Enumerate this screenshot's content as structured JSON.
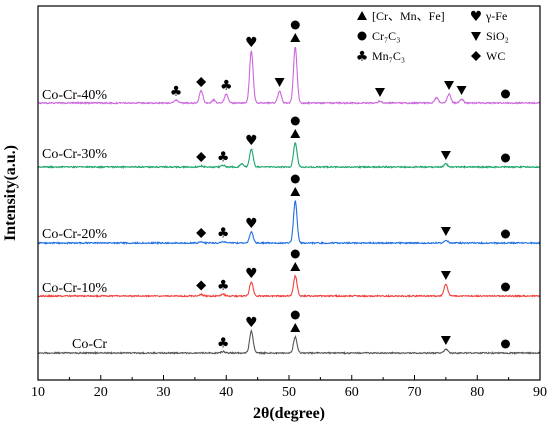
{
  "chart_data": {
    "type": "line",
    "xlabel": "2θ(degree)",
    "ylabel": "Intensity(a.u.)",
    "xlim": [
      10,
      90
    ],
    "x_ticks": [
      "10",
      "20",
      "30",
      "40",
      "50",
      "60",
      "70",
      "80",
      "90"
    ],
    "grid": false,
    "y_tick_labels": false,
    "series": [
      {
        "name": "Co-Cr",
        "color": "#555555",
        "peaks": [
          [
            39.5,
            1.5
          ],
          [
            44.0,
            22
          ],
          [
            51.0,
            16
          ],
          [
            75.0,
            4
          ]
        ],
        "markers": [
          {
            "symbol": "club",
            "x": 39.5
          },
          {
            "symbol": "heart",
            "x": 44.0
          },
          {
            "symbol": "triangle",
            "x": 51.0
          },
          {
            "symbol": "circle",
            "x": 51.0
          },
          {
            "symbol": "down-triangle",
            "x": 75.0
          },
          {
            "symbol": "circle",
            "x": 84.5
          }
        ]
      },
      {
        "name": "Co-Cr-10%",
        "color": "#f0413d",
        "peaks": [
          [
            36.0,
            1.5
          ],
          [
            39.5,
            2
          ],
          [
            44.0,
            14
          ],
          [
            51.0,
            20
          ],
          [
            75.0,
            12
          ]
        ],
        "markers": [
          {
            "symbol": "diamond",
            "x": 36.0
          },
          {
            "symbol": "club",
            "x": 39.5
          },
          {
            "symbol": "heart",
            "x": 44.0
          },
          {
            "symbol": "triangle",
            "x": 51.0
          },
          {
            "symbol": "circle",
            "x": 51.0
          },
          {
            "symbol": "down-triangle",
            "x": 75.0
          },
          {
            "symbol": "circle",
            "x": 84.5
          }
        ]
      },
      {
        "name": "Co-Cr-20%",
        "color": "#1f6fe0",
        "peaks": [
          [
            36.0,
            1
          ],
          [
            39.5,
            1.5
          ],
          [
            44.0,
            11
          ],
          [
            51.0,
            42
          ],
          [
            75.0,
            3
          ]
        ],
        "markers": [
          {
            "symbol": "diamond",
            "x": 36.0
          },
          {
            "symbol": "club",
            "x": 39.5
          },
          {
            "symbol": "heart",
            "x": 44.0
          },
          {
            "symbol": "triangle",
            "x": 51.0
          },
          {
            "symbol": "circle",
            "x": 51.0
          },
          {
            "symbol": "down-triangle",
            "x": 75.0
          },
          {
            "symbol": "circle",
            "x": 84.5
          }
        ]
      },
      {
        "name": "Co-Cr-30%",
        "color": "#1aa56b",
        "peaks": [
          [
            36.0,
            1
          ],
          [
            39.5,
            1.5
          ],
          [
            42.5,
            3
          ],
          [
            44.0,
            18
          ],
          [
            51.0,
            24
          ],
          [
            75.0,
            3
          ]
        ],
        "markers": [
          {
            "symbol": "diamond",
            "x": 36.0
          },
          {
            "symbol": "club",
            "x": 39.5
          },
          {
            "symbol": "heart",
            "x": 44.0
          },
          {
            "symbol": "triangle",
            "x": 51.0
          },
          {
            "symbol": "circle",
            "x": 51.0
          },
          {
            "symbol": "down-triangle",
            "x": 75.0
          },
          {
            "symbol": "circle",
            "x": 84.5
          }
        ]
      },
      {
        "name": "Co-Cr-40%",
        "color": "#cc66dd",
        "peaks": [
          [
            32.0,
            3
          ],
          [
            36.0,
            12
          ],
          [
            38.0,
            3
          ],
          [
            40.0,
            9
          ],
          [
            44.0,
            52
          ],
          [
            48.5,
            12
          ],
          [
            51.0,
            56
          ],
          [
            64.5,
            2
          ],
          [
            73.5,
            5
          ],
          [
            75.5,
            9
          ],
          [
            77.5,
            4
          ]
        ],
        "markers": [
          {
            "symbol": "club",
            "x": 32.0
          },
          {
            "symbol": "diamond",
            "x": 36.0
          },
          {
            "symbol": "club",
            "x": 40.0
          },
          {
            "symbol": "heart",
            "x": 44.0
          },
          {
            "symbol": "down-triangle",
            "x": 48.5
          },
          {
            "symbol": "triangle",
            "x": 51.0
          },
          {
            "symbol": "circle",
            "x": 51.0
          },
          {
            "symbol": "down-triangle",
            "x": 64.5
          },
          {
            "symbol": "down-triangle",
            "x": 75.5
          },
          {
            "symbol": "down-triangle",
            "x": 77.5
          },
          {
            "symbol": "circle",
            "x": 84.5
          }
        ]
      }
    ],
    "legend": {
      "placement": "top-right",
      "entries": [
        {
          "symbol": "triangle",
          "label": "[Cr、Mn、Fe]"
        },
        {
          "symbol": "heart",
          "label": "γ-Fe"
        },
        {
          "symbol": "circle",
          "label": "Cr₇C₃"
        },
        {
          "symbol": "down-triangle",
          "label": "SiO₂"
        },
        {
          "symbol": "club",
          "label": "Mn₇C₃"
        },
        {
          "symbol": "diamond",
          "label": "WC"
        }
      ]
    }
  }
}
